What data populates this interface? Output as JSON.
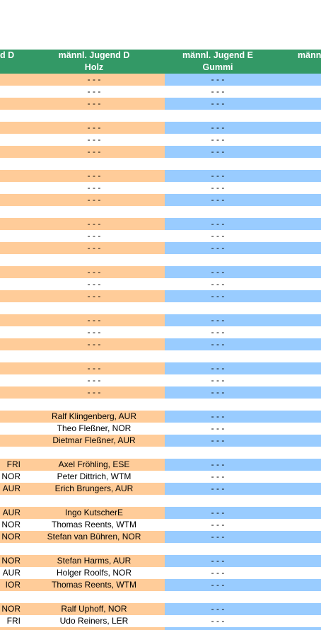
{
  "headers": [
    {
      "line1": "d D",
      "line2": ""
    },
    {
      "line1": "männl. Jugend D",
      "line2": "Holz"
    },
    {
      "line1": "männl. Jugend E",
      "line2": "Gummi"
    },
    {
      "line1": "männ",
      "line2": ""
    }
  ],
  "blocks": [
    {
      "rows": [
        [
          "",
          "- - -",
          "- - -"
        ],
        [
          "",
          "- - -",
          "- - -"
        ],
        [
          "",
          "- - -",
          "- - -"
        ]
      ]
    },
    {
      "rows": [
        [
          "",
          "- - -",
          "- - -"
        ],
        [
          "",
          "- - -",
          "- - -"
        ],
        [
          "",
          "- - -",
          "- - -"
        ]
      ]
    },
    {
      "rows": [
        [
          "",
          "- - -",
          "- - -"
        ],
        [
          "",
          "- - -",
          "- - -"
        ],
        [
          "",
          "- - -",
          "- - -"
        ]
      ]
    },
    {
      "rows": [
        [
          "",
          "- - -",
          "- - -"
        ],
        [
          "",
          "- - -",
          "- - -"
        ],
        [
          "",
          "- - -",
          "- - -"
        ]
      ]
    },
    {
      "rows": [
        [
          "",
          "- - -",
          "- - -"
        ],
        [
          "",
          "- - -",
          "- - -"
        ],
        [
          "",
          "- - -",
          "- - -"
        ]
      ]
    },
    {
      "rows": [
        [
          "",
          "- - -",
          "- - -"
        ],
        [
          "",
          "- - -",
          "- - -"
        ],
        [
          "",
          "- - -",
          "- - -"
        ]
      ]
    },
    {
      "rows": [
        [
          "",
          "- - -",
          "- - -"
        ],
        [
          "",
          "- - -",
          "- - -"
        ],
        [
          "",
          "- - -",
          "- - -"
        ]
      ]
    },
    {
      "rows": [
        [
          "",
          "Ralf Klingenberg, AUR",
          "- - -"
        ],
        [
          "",
          "Theo Fleßner, NOR",
          "- - -"
        ],
        [
          "",
          "Dietmar Fleßner, AUR",
          "- - -"
        ]
      ]
    },
    {
      "rows": [
        [
          "FRI",
          "Axel Fröhling, ESE",
          "- - -"
        ],
        [
          "NOR",
          "Peter Dittrich, WTM",
          "- - -"
        ],
        [
          "AUR",
          "Erich Brungers, AUR",
          "- - -"
        ]
      ]
    },
    {
      "rows": [
        [
          "AUR",
          "Ingo KutscherE",
          "- - -"
        ],
        [
          "NOR",
          "Thomas Reents, WTM",
          "- - -"
        ],
        [
          "NOR",
          "Stefan van Bühren, NOR",
          "- - -"
        ]
      ]
    },
    {
      "rows": [
        [
          "NOR",
          "Stefan Harms, AUR",
          "- - -"
        ],
        [
          "rst, AUR",
          "Holger Roolfs, NOR",
          "- - -"
        ],
        [
          "IOR",
          "Thomas Reents, WTM",
          "- - -"
        ]
      ]
    },
    {
      "rows": [
        [
          "NOR",
          "Ralf Uphoff, NOR",
          "- - -"
        ],
        [
          "FRI",
          "Udo Reiners, LER",
          "- - -"
        ],
        [
          "",
          "",
          ""
        ]
      ]
    }
  ]
}
